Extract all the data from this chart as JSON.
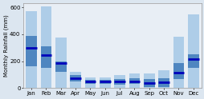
{
  "months": [
    "Jan",
    "Feb",
    "Mar",
    "Apr",
    "May",
    "Jun",
    "Jul",
    "Aug",
    "Sep",
    "Oct",
    "Nov",
    "Dec"
  ],
  "min_vals": [
    0,
    0,
    0,
    0,
    0,
    0,
    0,
    0,
    0,
    0,
    0,
    0
  ],
  "max_vals": [
    570,
    610,
    375,
    120,
    80,
    80,
    95,
    110,
    110,
    130,
    380,
    550
  ],
  "q25_vals": [
    160,
    150,
    120,
    50,
    30,
    30,
    25,
    30,
    10,
    10,
    70,
    150
  ],
  "q75_vals": [
    390,
    310,
    200,
    95,
    60,
    60,
    65,
    75,
    65,
    75,
    185,
    250
  ],
  "median_vals": [
    300,
    245,
    185,
    75,
    48,
    48,
    52,
    52,
    38,
    45,
    115,
    218
  ],
  "color_light": "#aecde8",
  "color_mid": "#4f86c0",
  "color_dark": "#0000bb",
  "ylabel": "Monthly Rainfall (mm)",
  "ylim": [
    0,
    630
  ],
  "yticks": [
    0,
    200,
    400,
    600
  ],
  "bg_color": "#e8eef5",
  "fig_bg": "#dce6f0"
}
